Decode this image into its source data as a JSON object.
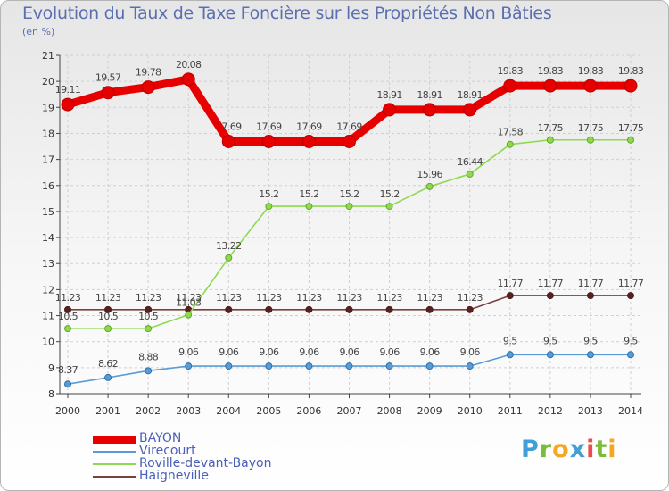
{
  "header": {
    "title": "Evolution du Taux de Taxe Foncière sur les Propriétés Non Bâties",
    "unit": "(en %)"
  },
  "logo": {
    "letters": [
      "P",
      "r",
      "o",
      "x",
      "i",
      "t",
      "i"
    ],
    "colors": [
      "#3f9fd6",
      "#7cbc3c",
      "#f5a623",
      "#3f9fd6",
      "#e94e4e",
      "#7cbc3c",
      "#f5a623"
    ]
  },
  "chart_data": {
    "type": "line",
    "title": "Evolution du Taux de Taxe Foncière sur les Propriétés Non Bâties",
    "ylabel": "(en %)",
    "xlabel": "",
    "x": [
      "2000",
      "2001",
      "2002",
      "2003",
      "2004",
      "2005",
      "2006",
      "2007",
      "2008",
      "2009",
      "2010",
      "2011",
      "2012",
      "2013",
      "2014"
    ],
    "ylim": [
      8,
      21
    ],
    "yticks": [
      "8",
      "9",
      "10",
      "11",
      "12",
      "13",
      "14",
      "15",
      "16",
      "17",
      "18",
      "19",
      "20",
      "21"
    ],
    "grid": true,
    "legend": "bottom-left",
    "series": [
      {
        "name": "BAYON",
        "color": "#e60000",
        "values": [
          19.11,
          19.57,
          19.78,
          20.08,
          17.69,
          17.69,
          17.69,
          17.69,
          18.91,
          18.91,
          18.91,
          19.83,
          19.83,
          19.83,
          19.83
        ],
        "labels": [
          "19.11",
          "19.57",
          "19.78",
          "20.08",
          "17.69",
          "17.69",
          "17.69",
          "17.69",
          "18.91",
          "18.91",
          "18.91",
          "19.83",
          "19.83",
          "19.83",
          "19.83"
        ]
      },
      {
        "name": "Virecourt",
        "color": "#5b9bd5",
        "values": [
          8.37,
          8.62,
          8.88,
          9.06,
          9.06,
          9.06,
          9.06,
          9.06,
          9.06,
          9.06,
          9.06,
          9.5,
          9.5,
          9.5,
          9.5
        ],
        "labels": [
          "8.37",
          "8.62",
          "8.88",
          "9.06",
          "9.06",
          "9.06",
          "9.06",
          "9.06",
          "9.06",
          "9.06",
          "9.06",
          "9.5",
          "9.5",
          "9.5",
          "9.5"
        ]
      },
      {
        "name": "Roville-devant-Bayon",
        "color": "#8fd94f",
        "values": [
          10.5,
          10.5,
          10.5,
          11.03,
          13.22,
          15.2,
          15.2,
          15.2,
          15.2,
          15.96,
          16.44,
          17.58,
          17.75,
          17.75,
          17.75
        ],
        "labels": [
          "10.5",
          "10.5",
          "10.5",
          "11.03",
          "13.22",
          "15.2",
          "15.2",
          "15.2",
          "15.2",
          "15.96",
          "16.44",
          "17.58",
          "17.75",
          "17.75",
          "17.75"
        ]
      },
      {
        "name": "Haigneville",
        "color": "#7b3f3f",
        "values": [
          11.23,
          11.23,
          11.23,
          11.23,
          11.23,
          11.23,
          11.23,
          11.23,
          11.23,
          11.23,
          11.23,
          11.77,
          11.77,
          11.77,
          11.77
        ],
        "labels": [
          "11.23",
          "11.23",
          "11.23",
          "11.23",
          "11.23",
          "11.23",
          "11.23",
          "11.23",
          "11.23",
          "11.23",
          "11.23",
          "11.77",
          "11.77",
          "11.77",
          "11.77"
        ]
      }
    ]
  }
}
